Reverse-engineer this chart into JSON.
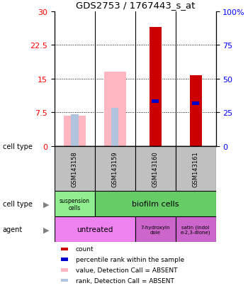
{
  "title": "GDS2753 / 1767443_s_at",
  "samples": [
    "GSM143158",
    "GSM143159",
    "GSM143160",
    "GSM143161"
  ],
  "bar_data": [
    {
      "count": null,
      "value_absent": 6.8,
      "rank_absent": 7.0,
      "percentile": null,
      "absent": true
    },
    {
      "count": null,
      "value_absent": 16.5,
      "rank_absent": 8.5,
      "percentile": null,
      "absent": true
    },
    {
      "count": 26.5,
      "value_absent": null,
      "rank_absent": null,
      "percentile": 10.0,
      "absent": false
    },
    {
      "count": 15.8,
      "value_absent": null,
      "rank_absent": null,
      "percentile": 9.5,
      "absent": false
    }
  ],
  "ylim_left": [
    0,
    30
  ],
  "ylim_right": [
    0,
    100
  ],
  "yticks_left": [
    0,
    7.5,
    15,
    22.5,
    30
  ],
  "ytick_labels_left": [
    "0",
    "7.5",
    "15",
    "22.5",
    "30"
  ],
  "yticks_right": [
    0,
    25,
    50,
    75,
    100
  ],
  "ytick_labels_right": [
    "0",
    "25",
    "50",
    "75",
    "100%"
  ],
  "color_count": "#cc0000",
  "color_percentile": "#0000cc",
  "color_value_absent": "#ffb6c1",
  "color_rank_absent": "#b0c4de",
  "color_sample_bg": "#c0c0c0",
  "color_suspension": "#90ee90",
  "color_biofilm": "#66cc66",
  "color_untreated": "#ee82ee",
  "color_agent2": "#cc66cc",
  "legend_items": [
    {
      "color": "#cc0000",
      "label": "count"
    },
    {
      "color": "#0000cc",
      "label": "percentile rank within the sample"
    },
    {
      "color": "#ffb6c1",
      "label": "value, Detection Call = ABSENT"
    },
    {
      "color": "#b0c4de",
      "label": "rank, Detection Call = ABSENT"
    }
  ]
}
